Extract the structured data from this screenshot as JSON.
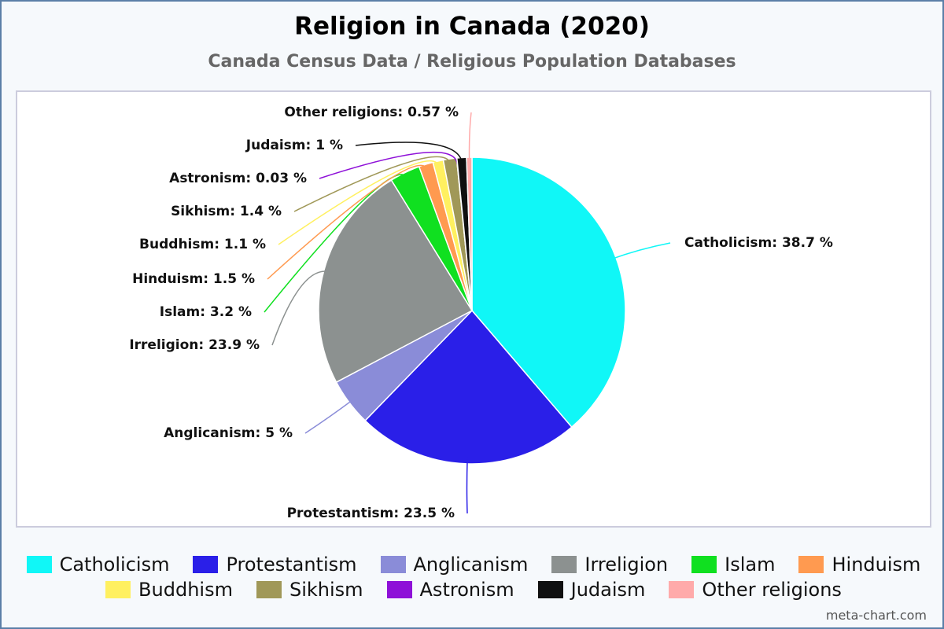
{
  "chart_data": {
    "type": "pie",
    "title": "Religion in Canada (2020)",
    "subtitle": "Canada Census Data / Religious Population Databases",
    "categories": [
      "Catholicism",
      "Protestantism",
      "Anglicanism",
      "Irreligion",
      "Islam",
      "Hinduism",
      "Buddhism",
      "Sikhism",
      "Astronism",
      "Judaism",
      "Other religions"
    ],
    "values": [
      38.7,
      23.5,
      5,
      23.9,
      3.2,
      1.5,
      1.1,
      1.4,
      0.03,
      1,
      0.57
    ],
    "value_labels": [
      "Catholicism: 38.7 %",
      "Protestantism: 23.5 %",
      "Anglicanism: 5 %",
      "Irreligion: 23.9 %",
      "Islam: 3.2 %",
      "Hinduism: 1.5 %",
      "Buddhism: 1.1 %",
      "Sikhism: 1.4 %",
      "Astronism: 0.03 %",
      "Judaism: 1 %",
      "Other religions: 0.57 %"
    ],
    "colors": [
      "#10f7f7",
      "#2a1fe8",
      "#8a8cd8",
      "#8c9190",
      "#10e020",
      "#ff9a50",
      "#fff060",
      "#a09858",
      "#8e10d8",
      "#101010",
      "#ffaaaa"
    ],
    "legend": "bottom",
    "watermark": "meta-chart.com"
  }
}
